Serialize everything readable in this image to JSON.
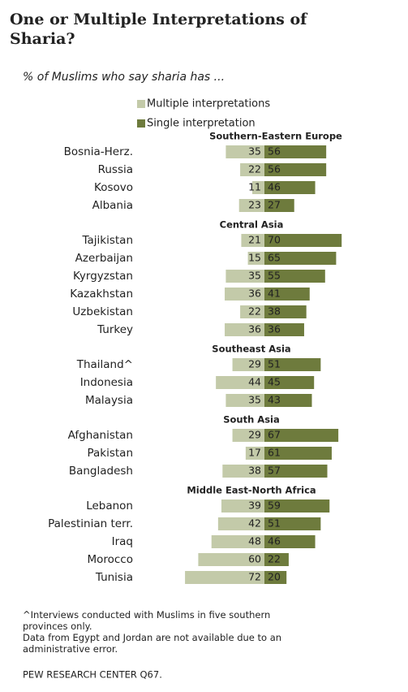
{
  "chart_data": {
    "type": "diverging_bar",
    "title": "One or Multiple Interpretations of Sharia?",
    "subtitle": "% of Muslims who say sharia has ...",
    "groups": [
      {
        "name": "Southern-Eastern  Europe",
        "categories": [
          "Bosnia-Herz.",
          "Russia",
          "Kosovo",
          "Albania"
        ]
      },
      {
        "name": "Central Asia",
        "categories": [
          "Tajikistan",
          "Azerbaijan",
          "Kyrgyzstan",
          "Kazakhstan",
          "Uzbekistan",
          "Turkey"
        ]
      },
      {
        "name": "Southeast Asia",
        "categories": [
          "Thailand^",
          "Indonesia",
          "Malaysia"
        ]
      },
      {
        "name": "South Asia",
        "categories": [
          "Afghanistan",
          "Pakistan",
          "Bangladesh"
        ]
      },
      {
        "name": "Middle East-North Africa",
        "categories": [
          "Lebanon",
          "Palestinian terr.",
          "Iraq",
          "Morocco",
          "Tunisia"
        ]
      }
    ],
    "series": [
      {
        "name": "Multiple interpretations",
        "color": "#c3caa9",
        "side": "left",
        "values": [
          [
            35,
            22,
            11,
            23
          ],
          [
            21,
            15,
            35,
            36,
            22,
            36
          ],
          [
            29,
            44,
            35
          ],
          [
            29,
            17,
            38
          ],
          [
            39,
            42,
            48,
            60,
            72
          ]
        ]
      },
      {
        "name": "Single interpretation",
        "color": "#6e7b3d",
        "side": "right",
        "values": [
          [
            56,
            56,
            46,
            27
          ],
          [
            70,
            65,
            55,
            41,
            38,
            36
          ],
          [
            51,
            45,
            43
          ],
          [
            67,
            61,
            57
          ],
          [
            59,
            51,
            46,
            22,
            20
          ]
        ]
      }
    ],
    "notes": [
      "^Interviews conducted with Muslims in five southern provinces only.",
      "Data from Egypt and Jordan are not available due to an administrative error."
    ],
    "source": "PEW RESEARCH CENTER Q67."
  }
}
